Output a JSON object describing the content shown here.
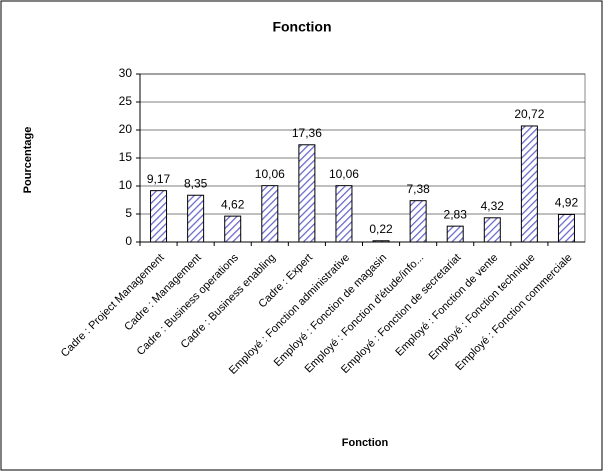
{
  "chart_data": {
    "type": "bar",
    "title": "Fonction",
    "x_label": "Fonction",
    "y_label": "Pourcentage",
    "categories": [
      "Cadre : Project Management",
      "Cadre : Management",
      "Cadre : Business operations",
      "Cadre : Business enabling",
      "Cadre : Expert",
      "Employé : Fonction administrative",
      "Employé : Fonction de magasin",
      "Employé : Fonction d'étude/info...",
      "Employé : Fonction de secretariat",
      "Employé : Fonction de vente",
      "Employé : Fonction technique",
      "Employé : Fonction commerciale"
    ],
    "values": [
      9.17,
      8.35,
      4.62,
      10.06,
      17.36,
      10.06,
      0.22,
      7.38,
      2.83,
      4.32,
      20.72,
      4.92
    ],
    "value_labels": [
      "9,17",
      "8,35",
      "4,62",
      "10,06",
      "17,36",
      "10,06",
      "0,22",
      "7,38",
      "2,83",
      "4,32",
      "20,72",
      "4,92"
    ],
    "color": "#6666cc",
    "ylim": [
      0,
      30
    ],
    "yticks": [
      0,
      5,
      10,
      15,
      20,
      25,
      30
    ],
    "grid": true
  }
}
